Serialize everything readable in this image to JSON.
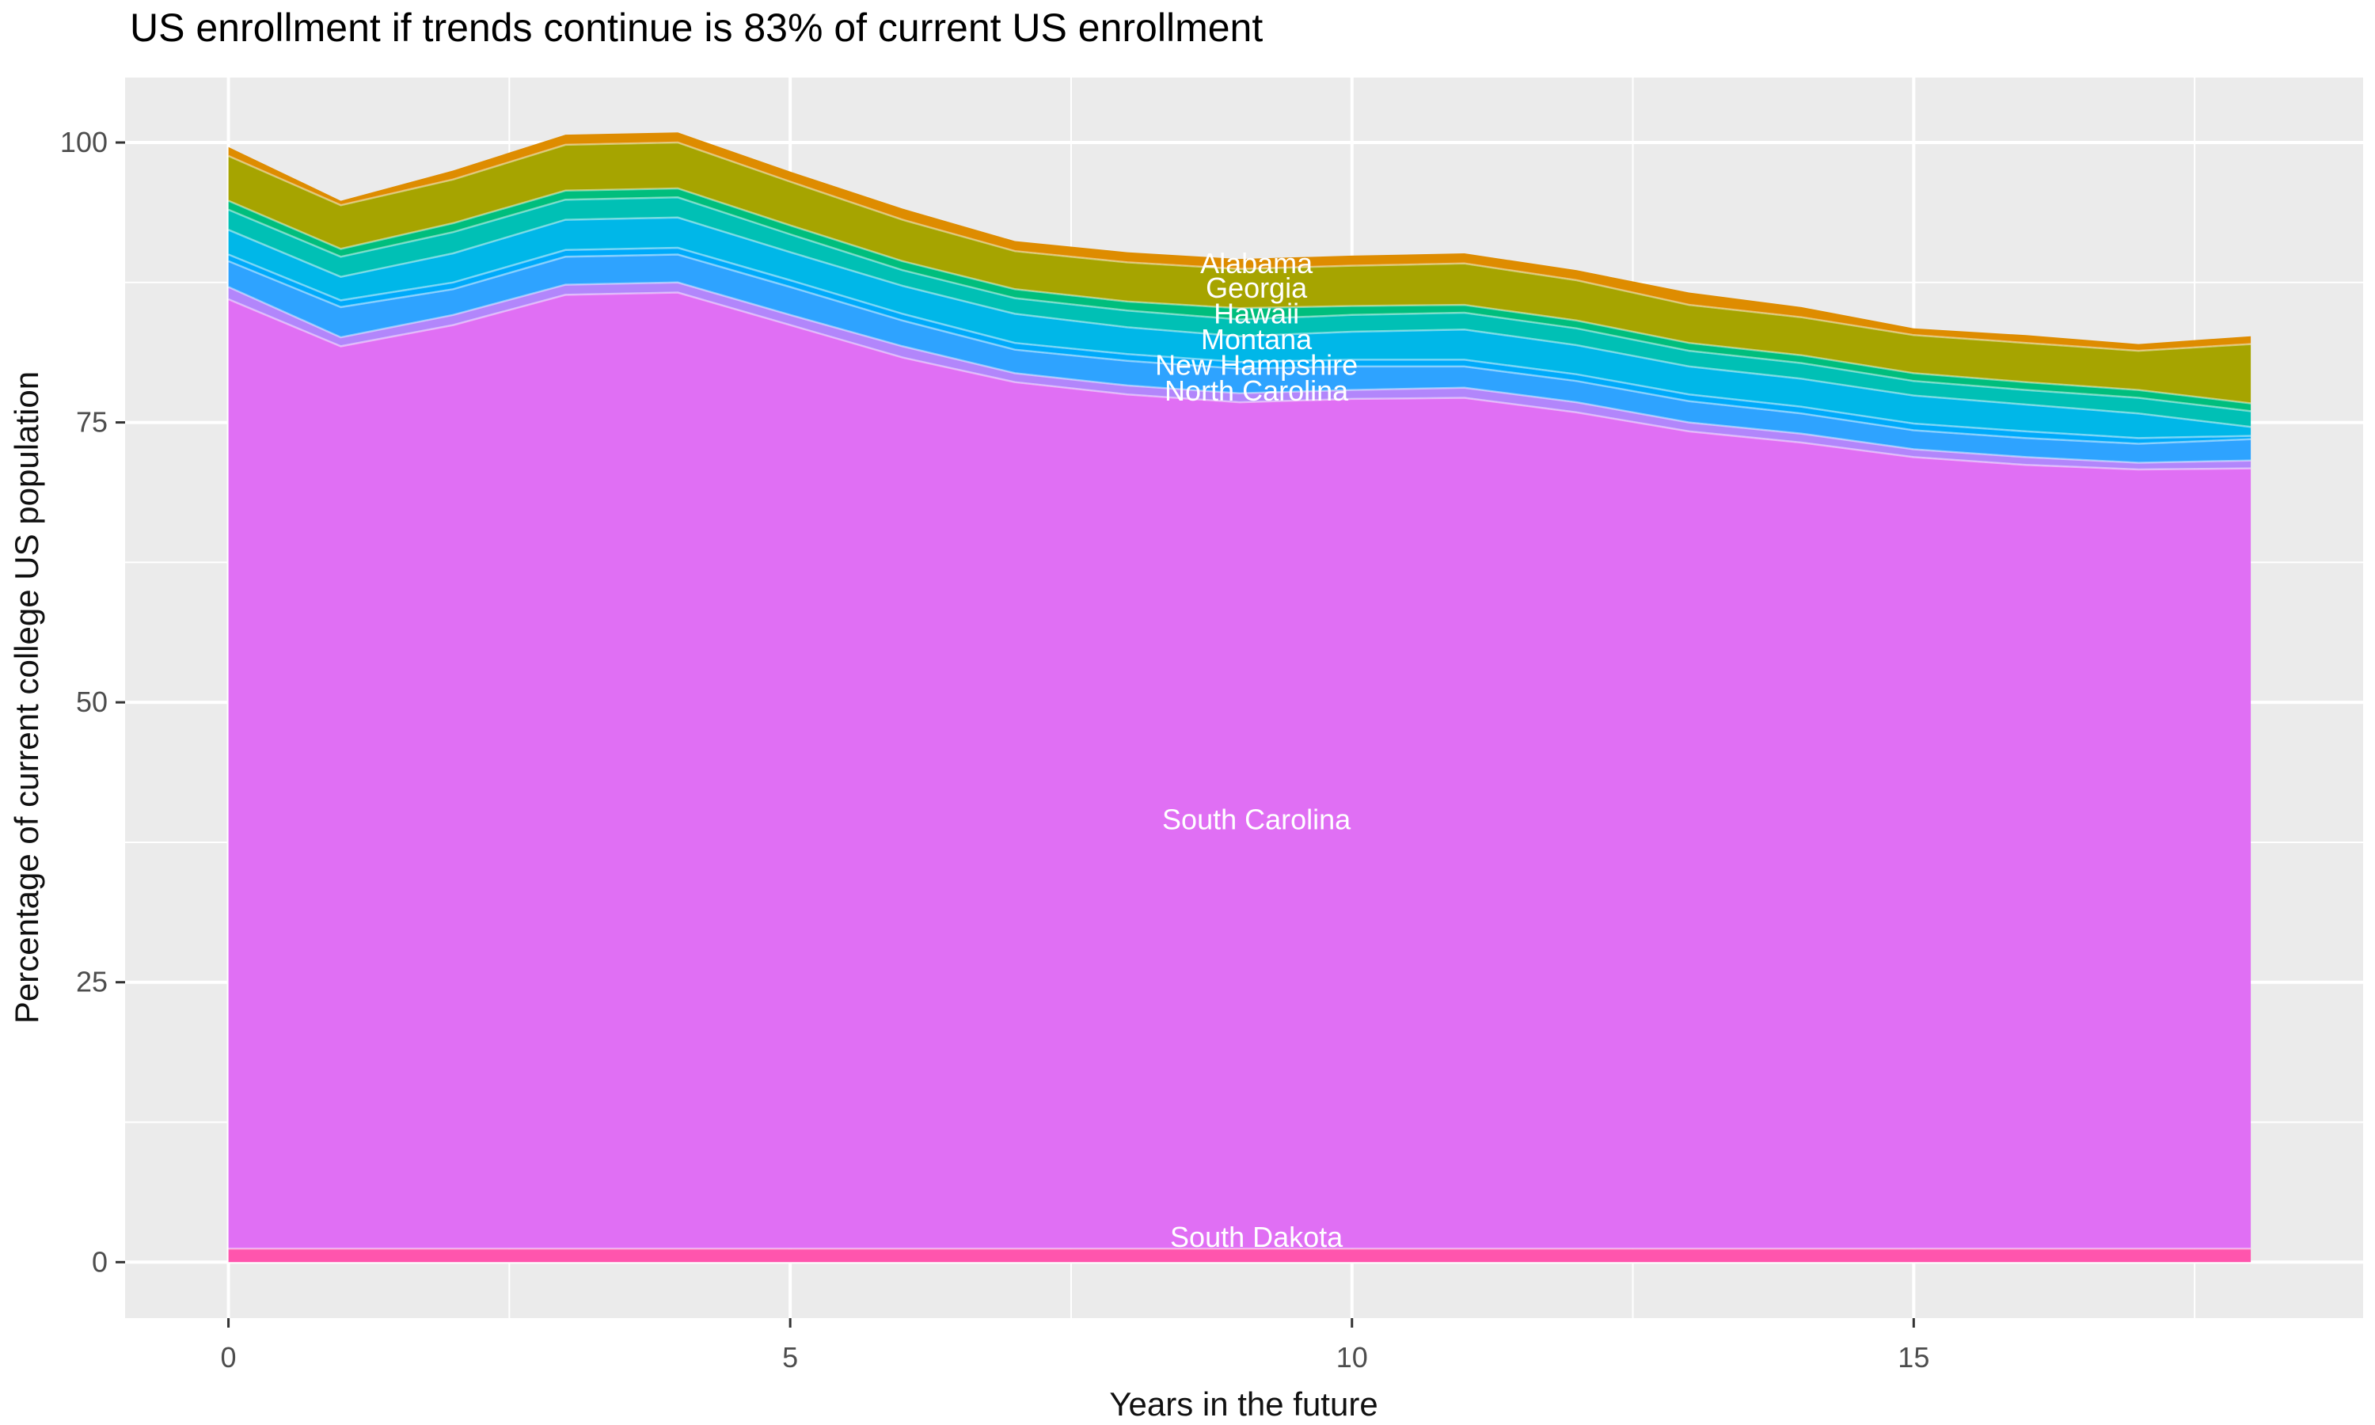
{
  "title": "US enrollment if trends continue is 83% of current US enrollment",
  "x_axis": {
    "label": "Years in the future",
    "ticks": [
      0,
      5,
      10,
      15
    ],
    "minor_ticks": [
      2.5,
      7.5,
      12.5,
      17.5
    ],
    "range": [
      -0.92,
      19.0
    ]
  },
  "y_axis": {
    "label": "Percentage of current college US population",
    "ticks": [
      0,
      25,
      50,
      75,
      100
    ],
    "minor_ticks": [
      12.5,
      37.5,
      62.5,
      87.5
    ],
    "range": [
      -5,
      105.8
    ]
  },
  "style": {
    "panel_bg": "#EBEBEB",
    "grid_color": "#FFFFFF",
    "tick_mark_color": "#333333",
    "tick_label_color": "#4D4D4D",
    "band_edge_color": "rgba(255,255,255,0.45)"
  },
  "chart_data": {
    "type": "area",
    "stacked": true,
    "stack_order": "bottom_to_top",
    "title": "US enrollment if trends continue is 83% of current US enrollment",
    "xlabel": "Years in the future",
    "ylabel": "Percentage of current college US population",
    "xlim": [
      -0.92,
      19.0
    ],
    "ylim": [
      -5,
      105.8
    ],
    "grid": true,
    "legend": false,
    "x": [
      0,
      1,
      2,
      3,
      4,
      5,
      6,
      7,
      8,
      9,
      10,
      11,
      12,
      13,
      14,
      15,
      16,
      17,
      18
    ],
    "series": [
      {
        "label": "South Dakota",
        "color": "#FF55AD",
        "values": [
          1.2,
          1.2,
          1.2,
          1.2,
          1.2,
          1.2,
          1.2,
          1.2,
          1.2,
          1.2,
          1.2,
          1.2,
          1.2,
          1.2,
          1.2,
          1.2,
          1.2,
          1.2,
          1.2
        ]
      },
      {
        "label": "South Carolina",
        "color": "#E06FF4",
        "values": [
          84.8,
          80.6,
          82.5,
          85.2,
          85.4,
          82.5,
          79.6,
          77.4,
          76.3,
          75.6,
          75.9,
          76.0,
          74.7,
          73.0,
          72.0,
          70.7,
          70.0,
          69.6,
          69.7
        ]
      },
      {
        "label": "",
        "color": "#B286FB",
        "values": [
          1.1,
          0.8,
          0.9,
          0.9,
          0.9,
          0.9,
          1.0,
          0.8,
          0.8,
          0.8,
          0.8,
          0.9,
          0.9,
          0.8,
          0.8,
          0.7,
          0.7,
          0.6,
          0.7
        ]
      },
      {
        "label": "North Carolina",
        "color": "#2EA3FF",
        "values": [
          2.3,
          2.7,
          2.3,
          2.5,
          2.5,
          2.5,
          2.3,
          2.1,
          2.2,
          2.2,
          2.1,
          1.9,
          1.9,
          1.9,
          1.8,
          1.7,
          1.7,
          1.7,
          1.9
        ]
      },
      {
        "label": "",
        "color": "#00AAFA",
        "values": [
          0.6,
          0.6,
          0.6,
          0.6,
          0.6,
          0.6,
          0.6,
          0.6,
          0.6,
          0.6,
          0.6,
          0.6,
          0.6,
          0.6,
          0.6,
          0.6,
          0.6,
          0.5,
          0.3
        ]
      },
      {
        "label": "New Hampshire",
        "color": "#00B7E8",
        "values": [
          2.2,
          2.1,
          2.6,
          2.7,
          2.7,
          2.5,
          2.5,
          2.6,
          2.4,
          2.3,
          2.5,
          2.7,
          2.6,
          2.5,
          2.5,
          2.5,
          2.4,
          2.2,
          0.8
        ]
      },
      {
        "label": "Montana",
        "color": "#00C0B5",
        "values": [
          1.8,
          1.8,
          1.9,
          1.8,
          1.8,
          1.6,
          1.4,
          1.4,
          1.5,
          1.5,
          1.5,
          1.5,
          1.5,
          1.4,
          1.4,
          1.3,
          1.3,
          1.4,
          1.4
        ]
      },
      {
        "label": "Hawaii",
        "color": "#00BE7D",
        "values": [
          0.8,
          0.7,
          0.8,
          0.8,
          0.8,
          0.8,
          0.8,
          0.8,
          0.8,
          1.0,
          0.8,
          0.7,
          0.7,
          0.7,
          0.7,
          0.7,
          0.7,
          0.7,
          0.7
        ]
      },
      {
        "label": "Georgia",
        "color": "#A6A400",
        "values": [
          4.0,
          3.9,
          3.9,
          4.1,
          4.1,
          3.9,
          3.7,
          3.4,
          3.5,
          3.5,
          3.6,
          3.7,
          3.6,
          3.4,
          3.4,
          3.4,
          3.5,
          3.5,
          5.3
        ]
      },
      {
        "label": "Alabama",
        "color": "#DE8C00",
        "values": [
          0.8,
          0.4,
          0.8,
          0.9,
          0.9,
          0.9,
          1.0,
          0.9,
          0.9,
          0.9,
          0.9,
          0.9,
          0.9,
          1.1,
          0.9,
          0.6,
          0.7,
          0.6,
          0.7
        ]
      }
    ],
    "annotations": [
      {
        "text": "Alabama",
        "x": 9.15,
        "y": 89.2
      },
      {
        "text": "Georgia",
        "x": 9.15,
        "y": 87.0
      },
      {
        "text": "Hawaii",
        "x": 9.15,
        "y": 84.7
      },
      {
        "text": "Montana",
        "x": 9.15,
        "y": 82.4
      },
      {
        "text": "New Hampshire",
        "x": 9.15,
        "y": 80.1
      },
      {
        "text": "North Carolina",
        "x": 9.15,
        "y": 77.8
      },
      {
        "text": "South Carolina",
        "x": 9.15,
        "y": 39.5
      },
      {
        "text": "South Dakota",
        "x": 9.15,
        "y": 2.2
      }
    ]
  }
}
